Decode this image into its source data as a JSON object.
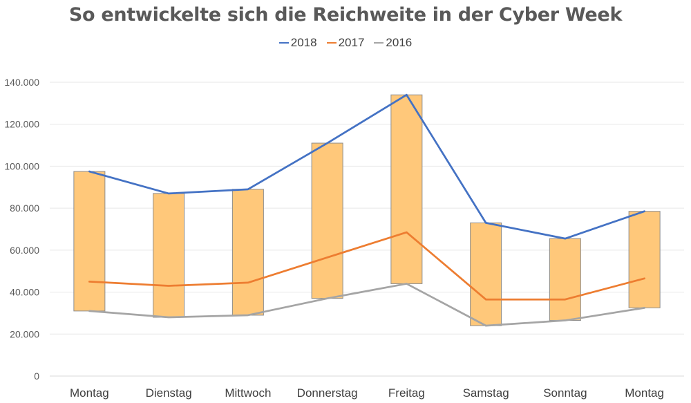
{
  "chart_data": {
    "type": "line",
    "title": "So entwickelte sich die Reichweite in der Cyber Week",
    "xlabel": "",
    "ylabel": "",
    "categories": [
      "Montag",
      "Dienstag",
      "Mittwoch",
      "Donnerstag",
      "Freitag",
      "Samstag",
      "Sonntag",
      "Montag"
    ],
    "y_ticks": [
      "0",
      "20.000",
      "40.000",
      "60.000",
      "80.000",
      "100.000",
      "120.000",
      "140.000"
    ],
    "ylim": [
      0,
      140000
    ],
    "grid": true,
    "legend_position": "top",
    "series": [
      {
        "name": "2018",
        "color": "#4472C4",
        "values": [
          97500,
          87000,
          89000,
          111000,
          134000,
          73000,
          65500,
          78500
        ]
      },
      {
        "name": "2017",
        "color": "#ED7D31",
        "values": [
          45000,
          43000,
          44500,
          56500,
          68500,
          36500,
          36500,
          46500
        ]
      },
      {
        "name": "2016",
        "color": "#A5A5A5",
        "values": [
          31000,
          28000,
          29000,
          37000,
          44000,
          24000,
          26500,
          32500
        ]
      }
    ],
    "high_low_bars": {
      "fill": "#FFC87A",
      "stroke": "#8C8C8C"
    }
  }
}
